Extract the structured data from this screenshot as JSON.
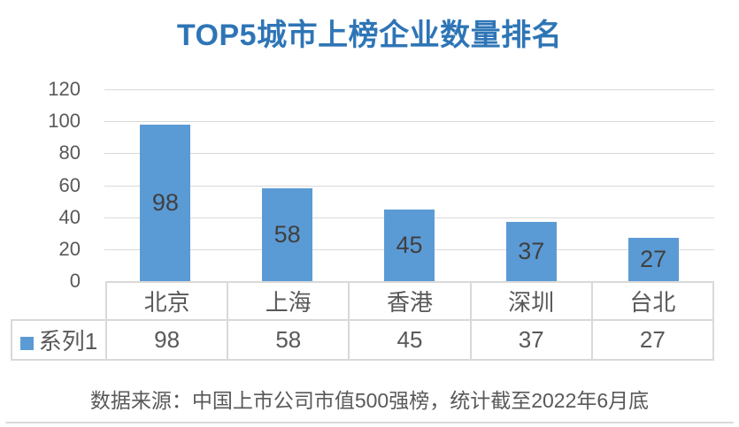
{
  "title": "TOP5城市上榜企业数量排名",
  "footer": "数据来源：中国上市公司市值500强榜，统计截至2022年6月底",
  "colors": {
    "title": "#2E75B6",
    "bar": "#5B9BD5",
    "grid": "#D9D9D9",
    "axis_text": "#595959",
    "bar_label_text": "#404040",
    "table_border": "#D9D9D9"
  },
  "chart_data": {
    "type": "bar",
    "title": "TOP5城市上榜企业数量排名",
    "categories": [
      "北京",
      "上海",
      "香港",
      "深圳",
      "台北"
    ],
    "series": [
      {
        "name": "系列1",
        "values": [
          98,
          58,
          45,
          37,
          27
        ]
      }
    ],
    "xlabel": "",
    "ylabel": "",
    "ylim": [
      0,
      120
    ],
    "yticks": [
      0,
      20,
      40,
      60,
      80,
      100,
      120
    ],
    "grid": true,
    "data_labels": true,
    "legend_position": "data-table-left",
    "data_table": true
  }
}
